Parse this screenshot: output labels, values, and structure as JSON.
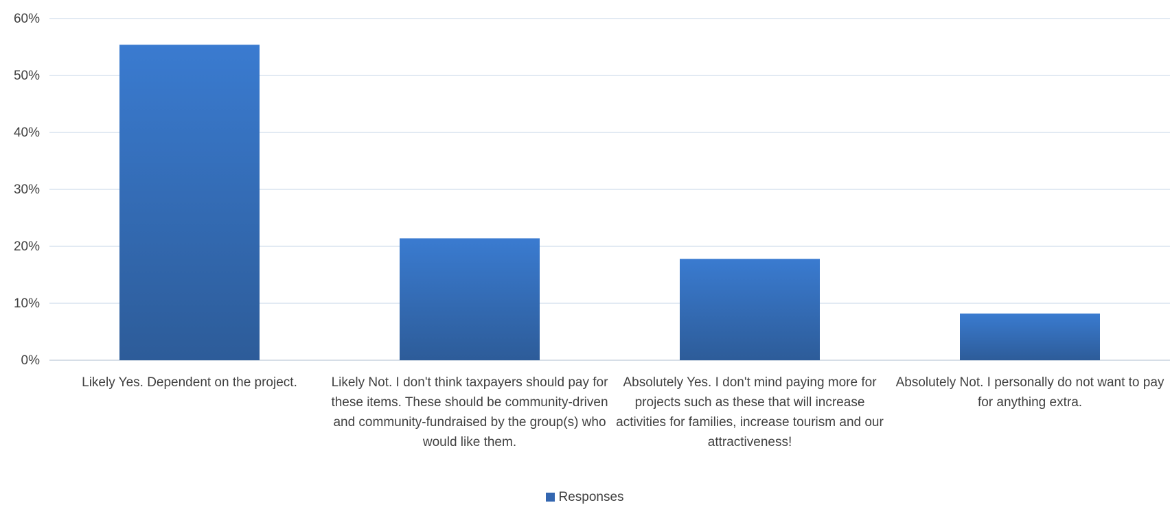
{
  "chart_data": {
    "type": "bar",
    "categories": [
      "Likely Yes.  Dependent on the project.",
      "Likely Not.  I don't think taxpayers should pay for these items. These should be community-driven and community-fundraised by the group(s) who would like them.",
      "Absolutely Yes. I don't mind paying more for projects such as these that will increase activities for families, increase tourism and our attractiveness!",
      "Absolutely Not. I personally do not want to pay for anything extra."
    ],
    "series": [
      {
        "name": "Responses",
        "values": [
          0.554,
          0.214,
          0.178,
          0.082
        ]
      }
    ],
    "ylim": [
      0,
      0.6
    ],
    "yticks": [
      "0%",
      "10%",
      "20%",
      "30%",
      "40%",
      "50%",
      "60%"
    ],
    "grid": true,
    "legend": "bottom-center",
    "colors": {
      "bar_top": "#3a7bd0",
      "bar_bottom": "#2d5c99",
      "grid": "#d9e3ef",
      "text": "#404040"
    }
  }
}
